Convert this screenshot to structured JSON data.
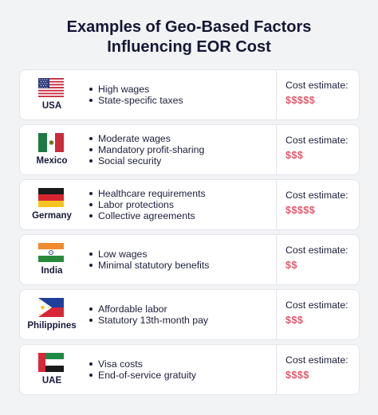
{
  "header": {
    "title_line1": "Examples of Geo-Based Factors",
    "title_line2": "Influencing EOR Cost"
  },
  "countries": [
    {
      "name": "USA",
      "flag_icon": "usa-flag-icon",
      "factors": [
        "High wages",
        "State-specific taxes"
      ],
      "cost_label": "Cost estimate:",
      "cost": "$$$$$"
    },
    {
      "name": "Mexico",
      "flag_icon": "mexico-flag-icon",
      "factors": [
        "Moderate wages",
        "Mandatory profit-sharing",
        "Social security"
      ],
      "cost_label": "Cost estimate:",
      "cost": "$$$"
    },
    {
      "name": "Germany",
      "flag_icon": "germany-flag-icon",
      "factors": [
        "Healthcare requirements",
        "Labor protections",
        "Collective agreements"
      ],
      "cost_label": "Cost estimate:",
      "cost": "$$$$$"
    },
    {
      "name": "India",
      "flag_icon": "india-flag-icon",
      "factors": [
        "Low wages",
        "Minimal statutory benefits"
      ],
      "cost_label": "Cost estimate:",
      "cost": "$$"
    },
    {
      "name": "Philippines",
      "flag_icon": "philippines-flag-icon",
      "factors": [
        "Affordable labor",
        "Statutory 13th-month pay"
      ],
      "cost_label": "Cost estimate:",
      "cost": "$$$"
    },
    {
      "name": "UAE",
      "flag_icon": "uae-flag-icon",
      "factors": [
        "Visa costs",
        "End-of-service gratuity"
      ],
      "cost_label": "Cost estimate:",
      "cost": "$$$$"
    }
  ],
  "colors": {
    "page_background": "#f2f3f5",
    "card_background": "#ffffff",
    "title_text": "#141735",
    "cost_accent": "#e05a6c"
  }
}
